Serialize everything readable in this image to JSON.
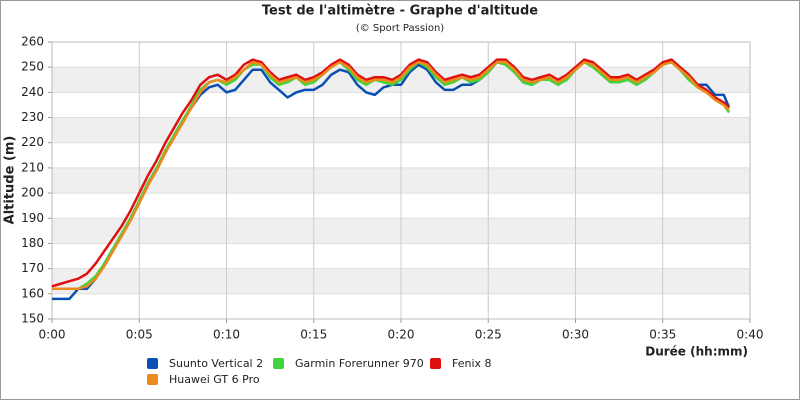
{
  "chart_data": {
    "type": "line",
    "title": "Test de l'altimètre - Graphe d'altitude",
    "subtitle": "(© Sport Passion)",
    "x_label": "Durée (hh:mm)",
    "y_label": "Altitude (m)",
    "x": [
      0,
      0.5,
      1,
      1.5,
      2,
      2.5,
      3,
      3.5,
      4,
      4.5,
      5,
      5.5,
      6,
      6.5,
      7,
      7.5,
      8,
      8.5,
      9,
      9.5,
      10,
      10.5,
      11,
      11.5,
      12,
      12.5,
      13,
      13.5,
      14,
      14.5,
      15,
      15.5,
      16,
      16.5,
      17,
      17.5,
      18,
      18.5,
      19,
      19.5,
      20,
      20.5,
      21,
      21.5,
      22,
      22.5,
      23,
      23.5,
      24,
      24.5,
      25,
      25.5,
      26,
      26.5,
      27,
      27.5,
      28,
      28.5,
      29,
      29.5,
      30,
      30.5,
      31,
      31.5,
      32,
      32.5,
      33,
      33.5,
      34,
      34.5,
      35,
      35.5,
      36,
      36.5,
      37,
      37.5,
      38,
      38.5,
      38.8
    ],
    "series": [
      {
        "name": "Suunto Vertical 2",
        "color": "#0a4fb4",
        "values": [
          158,
          158,
          158,
          162,
          162,
          166,
          172,
          178,
          183,
          190,
          197,
          204,
          210,
          216,
          223,
          229,
          234,
          239,
          242,
          243,
          240,
          241,
          245,
          249,
          249,
          244,
          241,
          238,
          240,
          241,
          241,
          243,
          247,
          249,
          248,
          243,
          240,
          239,
          242,
          243,
          243,
          248,
          251,
          249,
          244,
          241,
          241,
          243,
          243,
          245,
          248,
          252,
          251,
          248,
          244,
          243,
          245,
          246,
          244,
          246,
          249,
          252,
          251,
          248,
          245,
          245,
          246,
          244,
          246,
          248,
          251,
          252,
          249,
          245,
          243,
          243,
          239,
          239,
          234
        ]
      },
      {
        "name": "Garmin Forerunner 970",
        "color": "#3fd43a",
        "values": [
          162,
          162,
          162,
          162,
          164,
          167,
          172,
          178,
          184,
          190,
          197,
          204,
          210,
          217,
          223,
          229,
          235,
          241,
          244,
          245,
          243,
          245,
          249,
          251,
          251,
          246,
          243,
          244,
          246,
          243,
          244,
          247,
          250,
          252,
          249,
          245,
          243,
          245,
          244,
          243,
          245,
          249,
          252,
          250,
          246,
          243,
          244,
          246,
          244,
          245,
          248,
          252,
          251,
          248,
          244,
          243,
          245,
          245,
          243,
          245,
          249,
          252,
          250,
          247,
          244,
          244,
          245,
          243,
          245,
          248,
          251,
          252,
          249,
          245,
          242,
          240,
          237,
          235,
          232
        ]
      },
      {
        "name": "Fenix 8",
        "color": "#e01010",
        "values": [
          163,
          164,
          165,
          166,
          168,
          172,
          177,
          182,
          187,
          193,
          200,
          207,
          213,
          220,
          226,
          232,
          237,
          243,
          246,
          247,
          245,
          247,
          251,
          253,
          252,
          248,
          245,
          246,
          247,
          245,
          246,
          248,
          251,
          253,
          251,
          247,
          245,
          246,
          246,
          245,
          247,
          251,
          253,
          252,
          248,
          245,
          246,
          247,
          246,
          247,
          250,
          253,
          253,
          250,
          246,
          245,
          246,
          247,
          245,
          247,
          250,
          253,
          252,
          249,
          246,
          246,
          247,
          245,
          247,
          249,
          252,
          253,
          250,
          247,
          243,
          241,
          238,
          236,
          234
        ]
      },
      {
        "name": "Huawei GT 6 Pro",
        "color": "#ec8a1c",
        "values": [
          162,
          162,
          162,
          162,
          163,
          166,
          171,
          177,
          183,
          189,
          196,
          203,
          209,
          216,
          222,
          228,
          234,
          240,
          244,
          245,
          244,
          246,
          249,
          252,
          251,
          247,
          244,
          245,
          246,
          244,
          245,
          247,
          250,
          252,
          250,
          246,
          244,
          245,
          245,
          244,
          246,
          250,
          252,
          251,
          247,
          244,
          245,
          246,
          245,
          246,
          249,
          252,
          252,
          249,
          245,
          244,
          245,
          246,
          244,
          246,
          249,
          252,
          251,
          248,
          245,
          245,
          246,
          244,
          246,
          248,
          251,
          252,
          249,
          246,
          242,
          240,
          237,
          235,
          233
        ]
      }
    ],
    "xlim": [
      0,
      40
    ],
    "xticks": [
      {
        "value": 0,
        "label": "0:00"
      },
      {
        "value": 5,
        "label": "0:05"
      },
      {
        "value": 10,
        "label": "0:10"
      },
      {
        "value": 15,
        "label": "0:15"
      },
      {
        "value": 20,
        "label": "0:20"
      },
      {
        "value": 25,
        "label": "0:25"
      },
      {
        "value": 30,
        "label": "0:30"
      },
      {
        "value": 35,
        "label": "0:35"
      },
      {
        "value": 40,
        "label": "0:40"
      }
    ],
    "ylim": [
      150,
      260
    ],
    "yticks": [
      150,
      160,
      170,
      180,
      190,
      200,
      210,
      220,
      230,
      240,
      250,
      260
    ],
    "grid": true,
    "bands": true,
    "legend": "bottom"
  }
}
